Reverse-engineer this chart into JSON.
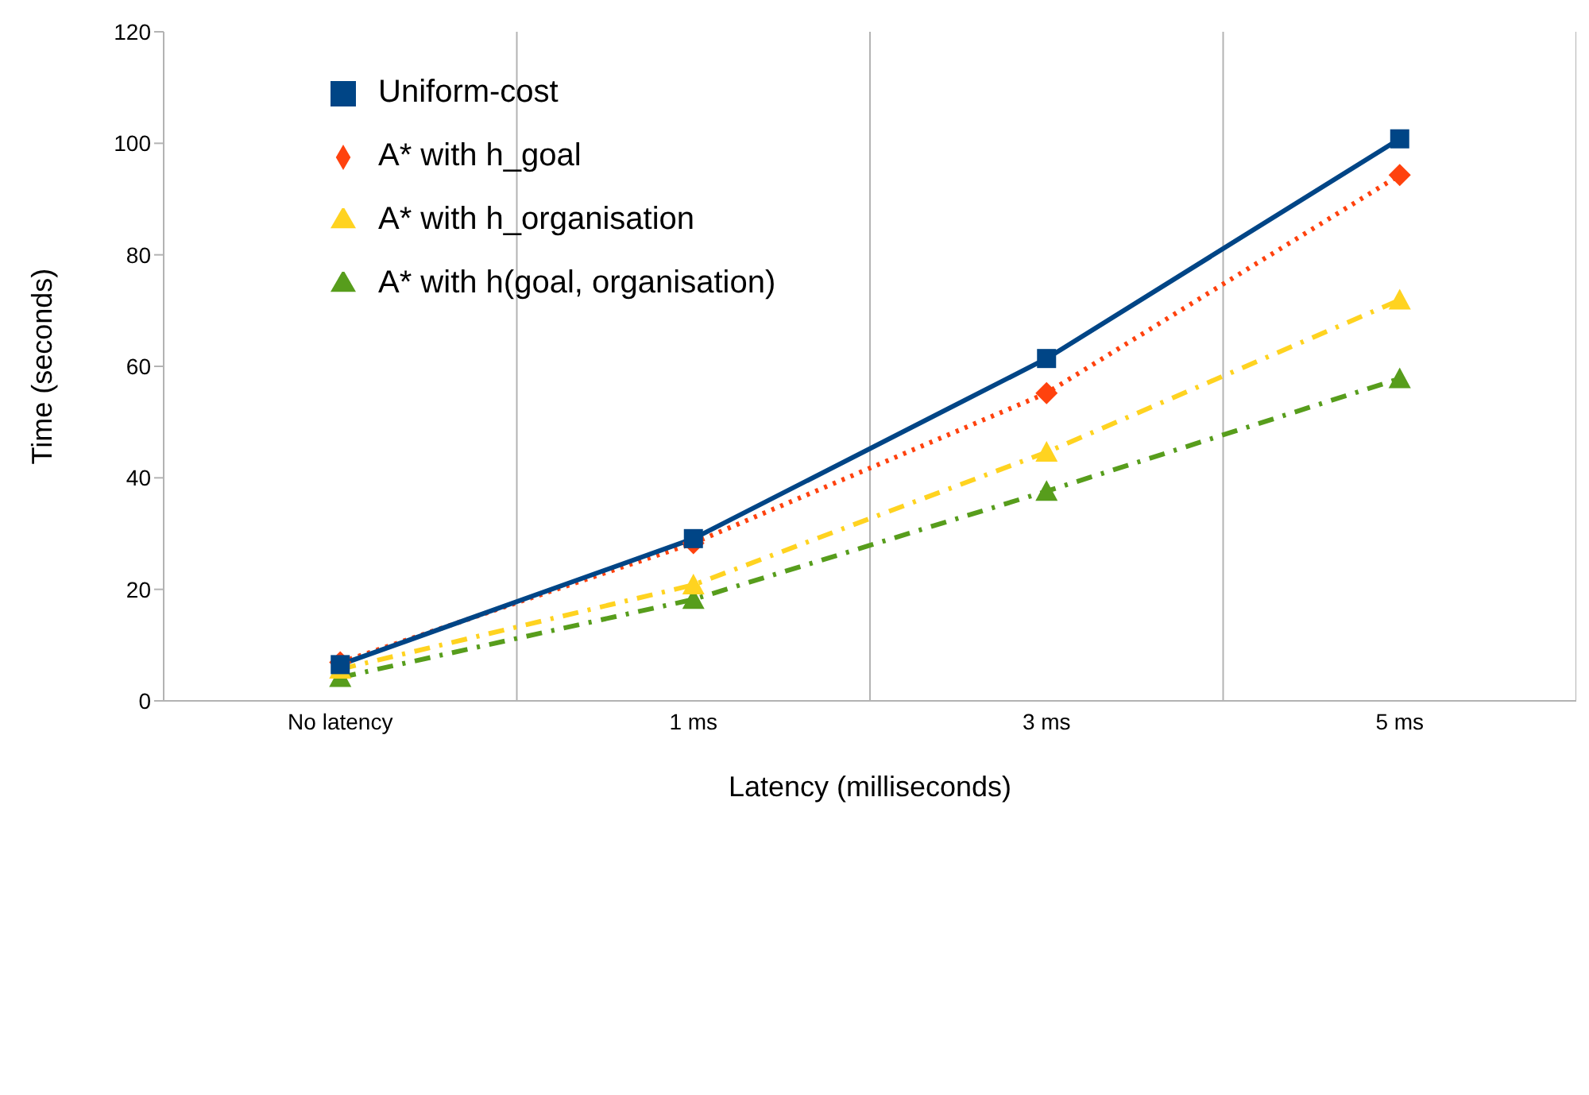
{
  "chart_data": {
    "type": "line",
    "xlabel": "Latency (milliseconds)",
    "ylabel": "Time (seconds)",
    "categories": [
      "No latency",
      "1 ms",
      "3 ms",
      "5 ms"
    ],
    "series": [
      {
        "name": "Uniform-cost",
        "color": "#004586",
        "values": [
          6.5,
          29.1,
          61.4,
          100.8
        ],
        "marker": "square",
        "line_style": "solid"
      },
      {
        "name": "A* with h_goal",
        "color": "#ff420e",
        "values": [
          6.9,
          28.3,
          55.2,
          94.3
        ],
        "marker": "diamond",
        "line_style": "dotted"
      },
      {
        "name": "A* with h_organisation",
        "color": "#ffd320",
        "values": [
          5.7,
          20.8,
          44.6,
          71.9
        ],
        "marker": "triangle",
        "line_style": "dashed"
      },
      {
        "name": "A* with h(goal, organisation)",
        "color": "#579d1c",
        "values": [
          4.2,
          18.2,
          37.6,
          57.8
        ],
        "marker": "triangle",
        "line_style": "dashed"
      }
    ],
    "ylim": [
      0,
      120
    ],
    "yticks": [
      0,
      20,
      40,
      60,
      80,
      100,
      120
    ],
    "grid": "x",
    "legend": "top left"
  }
}
